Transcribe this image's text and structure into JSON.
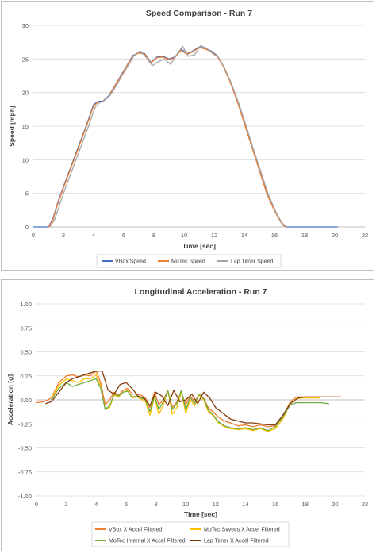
{
  "chart_data": [
    {
      "type": "line",
      "title": "Speed Comparison - Run 7",
      "xlabel": "Time [sec]",
      "ylabel": "Speed [mph]",
      "xlim": [
        0,
        22
      ],
      "ylim": [
        0,
        30
      ],
      "xticks": [
        0,
        2,
        4,
        6,
        8,
        10,
        12,
        14,
        16,
        18,
        20,
        22
      ],
      "yticks": [
        0,
        5,
        10,
        15,
        20,
        25,
        30
      ],
      "grid": true,
      "legend": "bottom",
      "series": [
        {
          "name": "VBox Speed",
          "color": "#4472c4",
          "x": [
            0,
            1.0,
            1.3,
            1.6,
            2.0,
            2.5,
            3.0,
            3.5,
            4.0,
            4.3,
            4.6,
            5.0,
            5.4,
            5.8,
            6.2,
            6.6,
            7.0,
            7.4,
            7.8,
            8.2,
            8.6,
            9.0,
            9.4,
            9.8,
            10.2,
            10.6,
            11.0,
            11.4,
            11.8,
            12.2,
            12.6,
            13.0,
            13.5,
            14.0,
            14.5,
            15.0,
            15.5,
            16.0,
            16.4,
            16.6,
            16.8,
            17.0,
            20.2
          ],
          "values": [
            0,
            0,
            1.2,
            3.5,
            6.0,
            9.0,
            12.0,
            15.0,
            18.2,
            18.7,
            18.7,
            19.5,
            21.0,
            22.5,
            24.0,
            25.5,
            26.0,
            25.8,
            24.5,
            25.3,
            25.4,
            25.0,
            25.3,
            26.5,
            25.8,
            26.2,
            26.8,
            26.6,
            26.2,
            25.5,
            24.0,
            22.0,
            19.0,
            15.5,
            12.0,
            8.5,
            5.0,
            2.5,
            0.8,
            0.2,
            0,
            0,
            0
          ]
        },
        {
          "name": "MoTec Speed",
          "color": "#ed7d31",
          "x": [
            1.0,
            1.3,
            1.6,
            2.0,
            2.5,
            3.0,
            3.5,
            4.0,
            4.3,
            4.6,
            5.0,
            5.4,
            5.8,
            6.2,
            6.6,
            7.0,
            7.4,
            7.8,
            8.2,
            8.6,
            9.0,
            9.4,
            9.8,
            10.2,
            10.6,
            11.0,
            11.4,
            11.8,
            12.2,
            12.6,
            13.0,
            13.5,
            14.0,
            14.5,
            15.0,
            15.5,
            16.0,
            16.4,
            16.7
          ],
          "values": [
            0,
            1.0,
            3.3,
            5.8,
            8.8,
            11.8,
            14.8,
            18.0,
            18.6,
            18.6,
            19.4,
            20.9,
            22.4,
            23.9,
            25.4,
            25.9,
            25.7,
            24.4,
            25.2,
            25.3,
            24.9,
            25.2,
            26.3,
            25.7,
            26.1,
            26.7,
            26.5,
            26.1,
            25.4,
            23.9,
            21.9,
            18.9,
            15.4,
            11.9,
            8.4,
            4.9,
            2.4,
            0.8,
            0
          ]
        },
        {
          "name": "Lap Timer Speed",
          "color": "#a5a5a5",
          "x": [
            1.1,
            1.4,
            1.7,
            2.1,
            2.6,
            3.1,
            3.6,
            4.1,
            4.4,
            4.7,
            5.1,
            5.5,
            5.9,
            6.3,
            6.7,
            7.1,
            7.5,
            7.9,
            8.3,
            8.7,
            9.1,
            9.5,
            9.9,
            10.3,
            10.7,
            11.1,
            11.5,
            11.9,
            12.3,
            12.7,
            13.1,
            13.6,
            14.1,
            14.6,
            15.1,
            15.6,
            16.1,
            16.5,
            16.8
          ],
          "values": [
            0,
            1.0,
            3.0,
            5.6,
            8.6,
            11.6,
            14.6,
            17.8,
            18.5,
            18.8,
            19.6,
            21.0,
            22.6,
            24.0,
            25.6,
            26.2,
            25.2,
            24.0,
            24.6,
            25.0,
            24.2,
            25.6,
            26.9,
            25.4,
            25.6,
            27.0,
            26.6,
            25.8,
            25.2,
            23.6,
            21.6,
            18.6,
            15.2,
            11.6,
            8.2,
            4.8,
            2.2,
            0.6,
            0
          ]
        }
      ]
    },
    {
      "type": "line",
      "title": "Longitudinal Acceleration - Run 7",
      "xlabel": "Time [sec]",
      "ylabel": "Acceleration [g]",
      "xlim": [
        0,
        22
      ],
      "ylim": [
        -1.0,
        1.0
      ],
      "xticks": [
        0,
        2,
        4,
        6,
        8,
        10,
        12,
        14,
        16,
        18,
        20,
        22
      ],
      "yticks": [
        1.0,
        0.75,
        0.5,
        0.25,
        0.0,
        -0.25,
        -0.5,
        -0.75,
        -1.0
      ],
      "ytick_labels": [
        "1.00",
        "0.75",
        "0.50",
        "0.25",
        "0.00",
        "-0.25",
        "-0.50",
        "-0.75",
        "-1.00"
      ],
      "grid": true,
      "legend": "bottom",
      "series": [
        {
          "name": "VBox X Accel Filtered",
          "color": "#ed7d31",
          "x": [
            0,
            0.5,
            1.0,
            1.5,
            2.0,
            2.4,
            2.8,
            3.2,
            3.6,
            4.0,
            4.3,
            4.6,
            4.9,
            5.2,
            5.5,
            5.8,
            6.1,
            6.4,
            6.7,
            7.0,
            7.3,
            7.6,
            7.9,
            8.2,
            8.5,
            8.8,
            9.1,
            9.4,
            9.7,
            10.0,
            10.3,
            10.6,
            10.9,
            11.2,
            11.5,
            11.8,
            12.2,
            12.6,
            13.0,
            13.5,
            14.0,
            14.5,
            15.0,
            15.5,
            16.0,
            16.5,
            17.0,
            17.4,
            17.8,
            18.5,
            19.0,
            19.6,
            20.4
          ],
          "values": [
            -0.03,
            -0.02,
            0.02,
            0.18,
            0.25,
            0.26,
            0.24,
            0.26,
            0.25,
            0.3,
            0.18,
            -0.05,
            0.0,
            0.08,
            0.05,
            0.1,
            0.12,
            0.06,
            0.06,
            0.05,
            0.02,
            -0.08,
            0.08,
            -0.05,
            0.0,
            0.1,
            -0.08,
            -0.02,
            0.08,
            -0.05,
            0.04,
            -0.02,
            0.06,
            0.02,
            -0.08,
            -0.12,
            -0.18,
            -0.22,
            -0.24,
            -0.27,
            -0.26,
            -0.28,
            -0.26,
            -0.28,
            -0.27,
            -0.18,
            -0.02,
            0.03,
            0.03,
            0.03,
            0.03,
            0.03,
            0.03
          ]
        },
        {
          "name": "MoTec Syvecs X Accel Filtered",
          "color": "#ffc000",
          "x": [
            1.0,
            1.5,
            2.0,
            2.4,
            2.8,
            3.2,
            3.6,
            4.0,
            4.3,
            4.6,
            4.9,
            5.2,
            5.5,
            5.8,
            6.1,
            6.4,
            6.7,
            7.0,
            7.3,
            7.6,
            7.9,
            8.2,
            8.5,
            8.8,
            9.1,
            9.4,
            9.7,
            10.0,
            10.3,
            10.6,
            10.9,
            11.2,
            11.5,
            11.8,
            12.2,
            12.6,
            13.0,
            13.5,
            14.0,
            14.5,
            15.0,
            15.5,
            16.0,
            16.5,
            17.0,
            17.4,
            17.8,
            18.5,
            19.0
          ],
          "values": [
            0.02,
            0.15,
            0.22,
            0.2,
            0.18,
            0.22,
            0.22,
            0.26,
            0.14,
            -0.1,
            -0.08,
            0.05,
            0.03,
            0.08,
            0.1,
            0.02,
            0.03,
            0.01,
            -0.02,
            -0.16,
            0.03,
            -0.15,
            -0.05,
            0.1,
            -0.15,
            -0.08,
            0.08,
            -0.14,
            0.0,
            -0.06,
            0.05,
            0.0,
            -0.12,
            -0.16,
            -0.24,
            -0.28,
            -0.3,
            -0.31,
            -0.3,
            -0.32,
            -0.3,
            -0.33,
            -0.3,
            -0.2,
            -0.04,
            0.01,
            0.02,
            0.02,
            0.02
          ]
        },
        {
          "name": "MoTec Internal X Accel Filtered",
          "color": "#70ad47",
          "x": [
            1.0,
            1.5,
            2.0,
            2.4,
            2.8,
            3.2,
            3.6,
            4.0,
            4.3,
            4.6,
            4.9,
            5.2,
            5.5,
            5.8,
            6.1,
            6.4,
            6.7,
            7.0,
            7.3,
            7.6,
            7.9,
            8.2,
            8.5,
            8.8,
            9.1,
            9.4,
            9.7,
            10.0,
            10.3,
            10.6,
            10.9,
            11.2,
            11.5,
            11.8,
            12.2,
            12.6,
            13.0,
            13.5,
            14.0,
            14.5,
            15.0,
            15.5,
            16.0,
            16.5,
            17.0,
            17.4,
            17.8,
            18.5,
            19.0,
            19.6
          ],
          "values": [
            0.0,
            0.12,
            0.18,
            0.14,
            0.16,
            0.18,
            0.2,
            0.22,
            0.12,
            -0.1,
            -0.06,
            0.06,
            0.04,
            0.08,
            0.09,
            0.03,
            0.04,
            0.02,
            0.0,
            -0.12,
            0.04,
            -0.1,
            -0.02,
            0.1,
            -0.1,
            -0.04,
            0.1,
            -0.1,
            0.02,
            -0.04,
            0.06,
            0.01,
            -0.1,
            -0.15,
            -0.23,
            -0.27,
            -0.29,
            -0.3,
            -0.29,
            -0.31,
            -0.29,
            -0.32,
            -0.28,
            -0.18,
            -0.05,
            -0.03,
            -0.03,
            -0.03,
            -0.03,
            -0.04
          ]
        },
        {
          "name": "Lap Timer X Accel Filtered",
          "color": "#843c0c",
          "x": [
            0.6,
            1.0,
            1.5,
            2.0,
            2.4,
            2.8,
            3.2,
            3.6,
            4.0,
            4.4,
            4.8,
            5.2,
            5.6,
            6.0,
            6.4,
            6.8,
            7.2,
            7.6,
            8.0,
            8.4,
            8.8,
            9.2,
            9.6,
            10.0,
            10.4,
            10.8,
            11.2,
            11.6,
            12.0,
            12.5,
            13.0,
            13.5,
            14.0,
            14.5,
            15.0,
            15.5,
            16.0,
            16.5,
            17.0,
            17.5,
            18.0,
            19.0,
            20.0,
            20.4
          ],
          "values": [
            -0.04,
            -0.02,
            0.08,
            0.18,
            0.22,
            0.24,
            0.26,
            0.28,
            0.3,
            0.3,
            0.1,
            0.06,
            0.16,
            0.18,
            0.12,
            0.04,
            0.02,
            -0.06,
            0.08,
            0.04,
            -0.06,
            0.1,
            -0.02,
            0.0,
            0.06,
            -0.04,
            0.08,
            0.02,
            -0.08,
            -0.14,
            -0.2,
            -0.22,
            -0.24,
            -0.24,
            -0.25,
            -0.26,
            -0.26,
            -0.16,
            -0.04,
            0.02,
            0.03,
            0.03,
            0.03,
            0.03
          ]
        }
      ]
    }
  ]
}
